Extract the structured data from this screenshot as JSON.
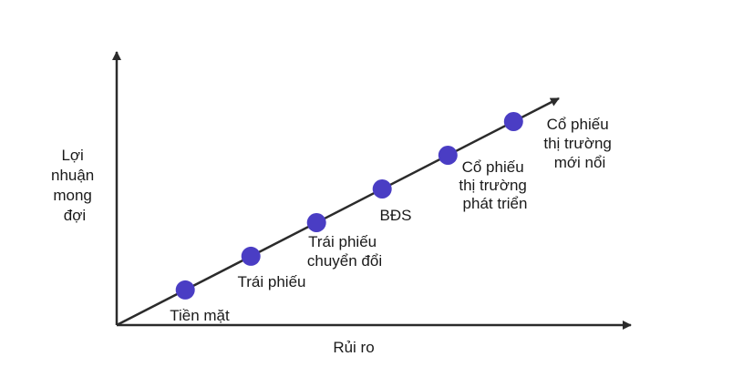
{
  "chart_data": {
    "type": "line",
    "xlabel": "Rủi ro",
    "ylabel": [
      "Lợi",
      "nhuận",
      "mong",
      "đợi"
    ],
    "point_color": "#4a3dc4",
    "line_color": "#2b2b2b",
    "points": [
      {
        "label": [
          "Tiền mặt"
        ]
      },
      {
        "label": [
          "Trái phiếu"
        ]
      },
      {
        "label": [
          "Trái phiếu",
          "chuyển đổi"
        ]
      },
      {
        "label": [
          "BĐS"
        ]
      },
      {
        "label": [
          "Cổ phiếu",
          "thị trường",
          "phát triển"
        ]
      },
      {
        "label": [
          "Cổ phiếu",
          "thị trường",
          "mới nổi"
        ]
      }
    ]
  }
}
